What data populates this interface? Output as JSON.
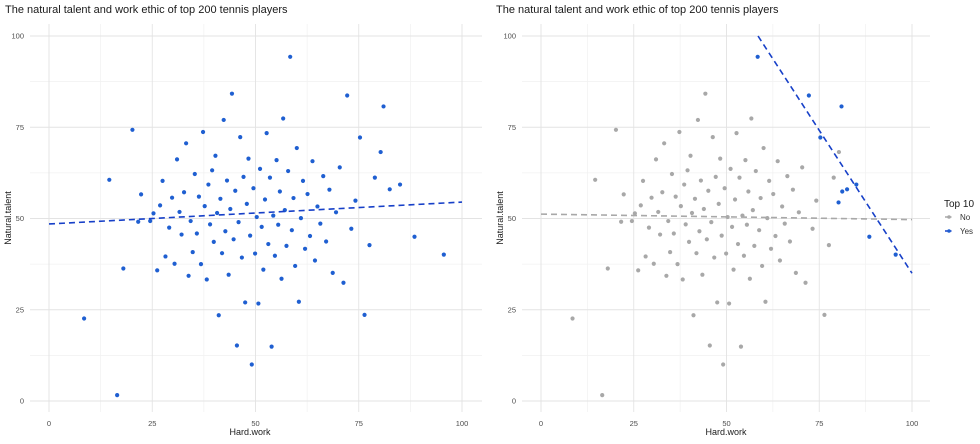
{
  "chart_data": [
    {
      "type": "scatter",
      "title": "The natural talent and work ethic of top 200 tennis players",
      "xlabel": "Hard.work",
      "ylabel": "Natural.talent",
      "xlim": [
        0,
        100
      ],
      "ylim": [
        0,
        100
      ],
      "x_ticks": [
        "0",
        "25",
        "50",
        "75",
        "100"
      ],
      "y_ticks": [
        "0",
        "25",
        "50",
        "75",
        "100"
      ],
      "grid": true,
      "point_color": "#1f5fd1",
      "trend_line": {
        "style": "dashed",
        "color": "#1740c8",
        "x": [
          0,
          100
        ],
        "y": [
          48.5,
          54.5
        ]
      },
      "points": [
        [
          8.5,
          22.6
        ],
        [
          14.6,
          60.6
        ],
        [
          16.5,
          1.6
        ],
        [
          18.0,
          36.3
        ],
        [
          20.2,
          74.3
        ],
        [
          21.6,
          49.1
        ],
        [
          22.3,
          56.6
        ],
        [
          24.5,
          49.3
        ],
        [
          25.3,
          51.4
        ],
        [
          26.2,
          35.8
        ],
        [
          26.9,
          53.6
        ],
        [
          27.5,
          60.3
        ],
        [
          28.2,
          39.6
        ],
        [
          29.1,
          47.5
        ],
        [
          29.8,
          55.7
        ],
        [
          30.4,
          37.6
        ],
        [
          31.0,
          66.2
        ],
        [
          31.6,
          51.8
        ],
        [
          32.1,
          45.6
        ],
        [
          32.7,
          57.2
        ],
        [
          33.2,
          70.6
        ],
        [
          33.8,
          34.3
        ],
        [
          34.3,
          49.3
        ],
        [
          34.8,
          40.8
        ],
        [
          35.3,
          62.2
        ],
        [
          35.8,
          45.9
        ],
        [
          36.3,
          56.0
        ],
        [
          36.8,
          37.5
        ],
        [
          37.3,
          73.7
        ],
        [
          37.7,
          53.4
        ],
        [
          38.2,
          33.3
        ],
        [
          38.6,
          59.3
        ],
        [
          39.0,
          48.4
        ],
        [
          39.5,
          63.2
        ],
        [
          39.9,
          43.6
        ],
        [
          40.3,
          67.2
        ],
        [
          40.7,
          51.5
        ],
        [
          41.1,
          23.5
        ],
        [
          41.5,
          55.4
        ],
        [
          41.9,
          40.5
        ],
        [
          42.3,
          77.0
        ],
        [
          42.7,
          46.5
        ],
        [
          43.1,
          60.4
        ],
        [
          43.5,
          34.6
        ],
        [
          43.9,
          52.6
        ],
        [
          44.3,
          84.2
        ],
        [
          44.7,
          44.3
        ],
        [
          45.1,
          57.6
        ],
        [
          45.5,
          15.2
        ],
        [
          45.9,
          49.0
        ],
        [
          46.3,
          72.3
        ],
        [
          46.7,
          39.3
        ],
        [
          47.1,
          61.4
        ],
        [
          47.5,
          27.0
        ],
        [
          47.9,
          54.0
        ],
        [
          48.3,
          66.4
        ],
        [
          48.7,
          45.3
        ],
        [
          49.1,
          10.0
        ],
        [
          49.5,
          58.3
        ],
        [
          49.9,
          40.4
        ],
        [
          50.3,
          50.4
        ],
        [
          50.7,
          26.7
        ],
        [
          51.1,
          63.6
        ],
        [
          51.5,
          47.7
        ],
        [
          51.9,
          36.0
        ],
        [
          52.3,
          55.2
        ],
        [
          52.7,
          73.4
        ],
        [
          53.1,
          43.0
        ],
        [
          53.5,
          61.2
        ],
        [
          53.9,
          14.9
        ],
        [
          54.3,
          50.8
        ],
        [
          54.7,
          39.8
        ],
        [
          55.1,
          66.0
        ],
        [
          55.5,
          48.3
        ],
        [
          55.9,
          57.4
        ],
        [
          56.3,
          33.5
        ],
        [
          56.7,
          77.4
        ],
        [
          57.1,
          52.3
        ],
        [
          57.5,
          42.5
        ],
        [
          57.9,
          63.0
        ],
        [
          58.4,
          94.3
        ],
        [
          58.8,
          46.8
        ],
        [
          59.2,
          55.6
        ],
        [
          59.6,
          37.0
        ],
        [
          60.0,
          69.3
        ],
        [
          60.5,
          27.2
        ],
        [
          61.0,
          50.1
        ],
        [
          61.5,
          60.3
        ],
        [
          62.0,
          41.7
        ],
        [
          62.6,
          56.7
        ],
        [
          63.2,
          45.2
        ],
        [
          63.8,
          65.7
        ],
        [
          64.4,
          38.5
        ],
        [
          65.0,
          53.3
        ],
        [
          65.7,
          48.6
        ],
        [
          66.4,
          61.6
        ],
        [
          67.1,
          43.7
        ],
        [
          67.9,
          57.9
        ],
        [
          68.7,
          35.1
        ],
        [
          69.5,
          51.7
        ],
        [
          70.4,
          64.0
        ],
        [
          71.3,
          32.4
        ],
        [
          72.2,
          83.7
        ],
        [
          73.2,
          47.2
        ],
        [
          74.2,
          54.9
        ],
        [
          75.3,
          72.2
        ],
        [
          76.4,
          23.6
        ],
        [
          77.6,
          42.7
        ],
        [
          78.9,
          61.2
        ],
        [
          80.3,
          68.2
        ],
        [
          81.0,
          80.7
        ],
        [
          82.5,
          58.0
        ],
        [
          85.0,
          59.3
        ],
        [
          88.5,
          45.0
        ],
        [
          95.6,
          40.1
        ]
      ]
    },
    {
      "type": "scatter",
      "title": "The natural talent and work ethic of top 200 tennis players",
      "xlabel": "Hard.work",
      "ylabel": "Natural.talent",
      "xlim": [
        0,
        100
      ],
      "ylim": [
        0,
        100
      ],
      "x_ticks": [
        "0",
        "25",
        "50",
        "75",
        "100"
      ],
      "y_ticks": [
        "0",
        "25",
        "50",
        "75",
        "100"
      ],
      "grid": true,
      "legend": {
        "title": "Top 10",
        "position": "right",
        "entries": [
          "No",
          "Yes"
        ]
      },
      "series": [
        {
          "name": "No",
          "color": "#a8a8a8",
          "trend_line": {
            "style": "dashed",
            "color": "#a8a8a8",
            "x": [
              0,
              100
            ],
            "y": [
              51.2,
              49.7
            ]
          }
        },
        {
          "name": "Yes",
          "color": "#1f5fd1",
          "trend_line": {
            "style": "dashed",
            "color": "#1740c8",
            "x": [
              58.5,
              100
            ],
            "y": [
              100,
              35
            ]
          },
          "points": [
            [
              58.4,
              94.3
            ],
            [
              72.2,
              83.7
            ],
            [
              75.3,
              72.2
            ],
            [
              81.0,
              80.7
            ],
            [
              81.2,
              57.4
            ],
            [
              82.5,
              58.0
            ],
            [
              85.0,
              59.3
            ],
            [
              88.5,
              45.0
            ],
            [
              95.6,
              40.1
            ],
            [
              80.2,
              54.4
            ]
          ]
        }
      ]
    }
  ]
}
